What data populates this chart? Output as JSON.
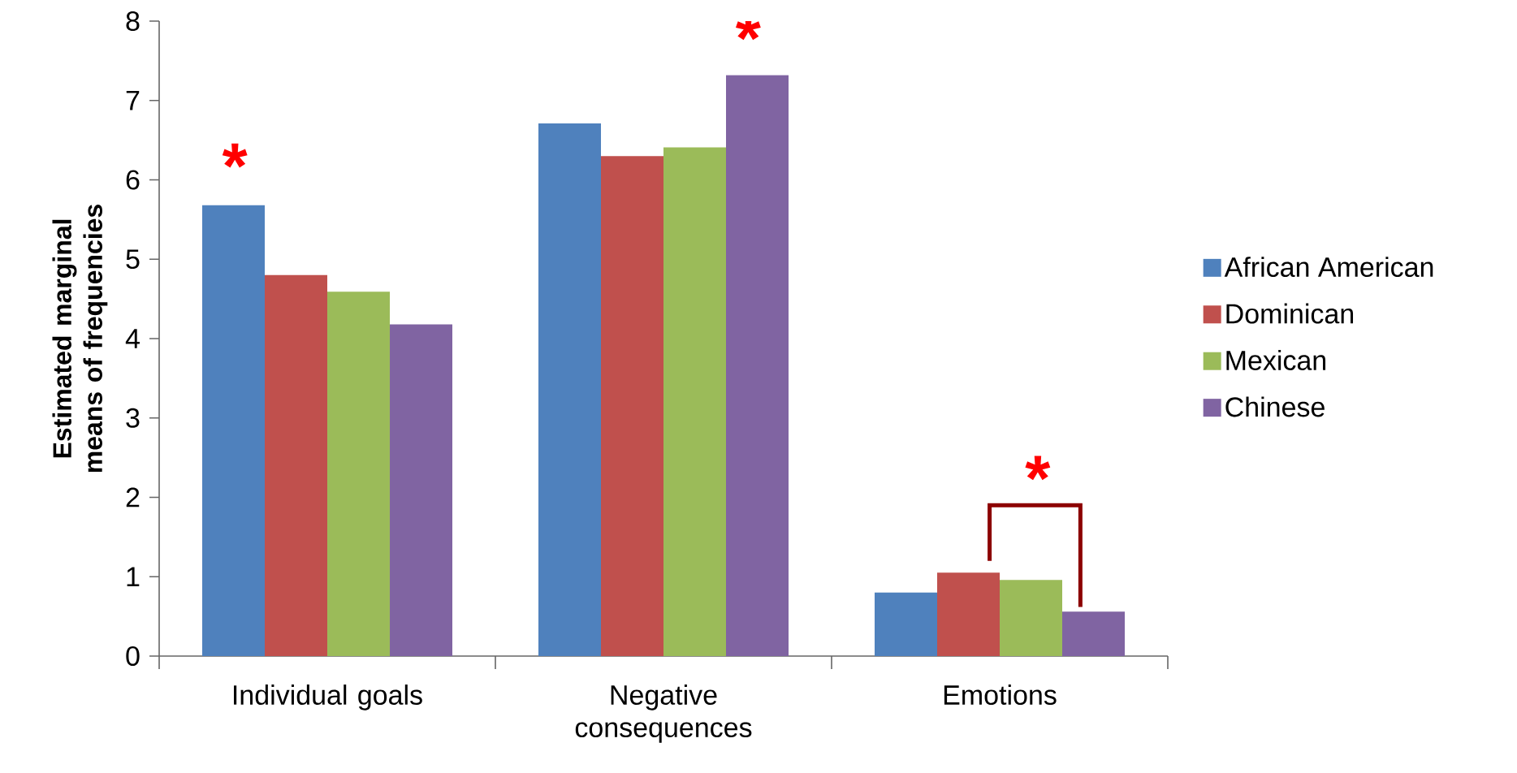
{
  "chart_data": {
    "type": "bar",
    "ylabel": "Estimated marginal means of frequencies",
    "categories": [
      "Individual goals",
      "Negative consequences",
      "Emotions"
    ],
    "series": [
      {
        "name": "African American",
        "color": "#4f81bd",
        "values": [
          5.68,
          6.71,
          0.8
        ]
      },
      {
        "name": "Dominican",
        "color": "#c0504d",
        "values": [
          4.8,
          6.3,
          1.05
        ]
      },
      {
        "name": "Mexican",
        "color": "#9bbb59",
        "values": [
          4.59,
          6.41,
          0.96
        ]
      },
      {
        "name": "Chinese",
        "color": "#8064a2",
        "values": [
          4.18,
          7.32,
          0.56
        ]
      }
    ],
    "ylim": [
      0,
      8
    ],
    "yticks": [
      0,
      1,
      2,
      3,
      4,
      5,
      6,
      7,
      8
    ],
    "legend": "right",
    "annotations": [
      "*",
      "*",
      "*"
    ]
  }
}
